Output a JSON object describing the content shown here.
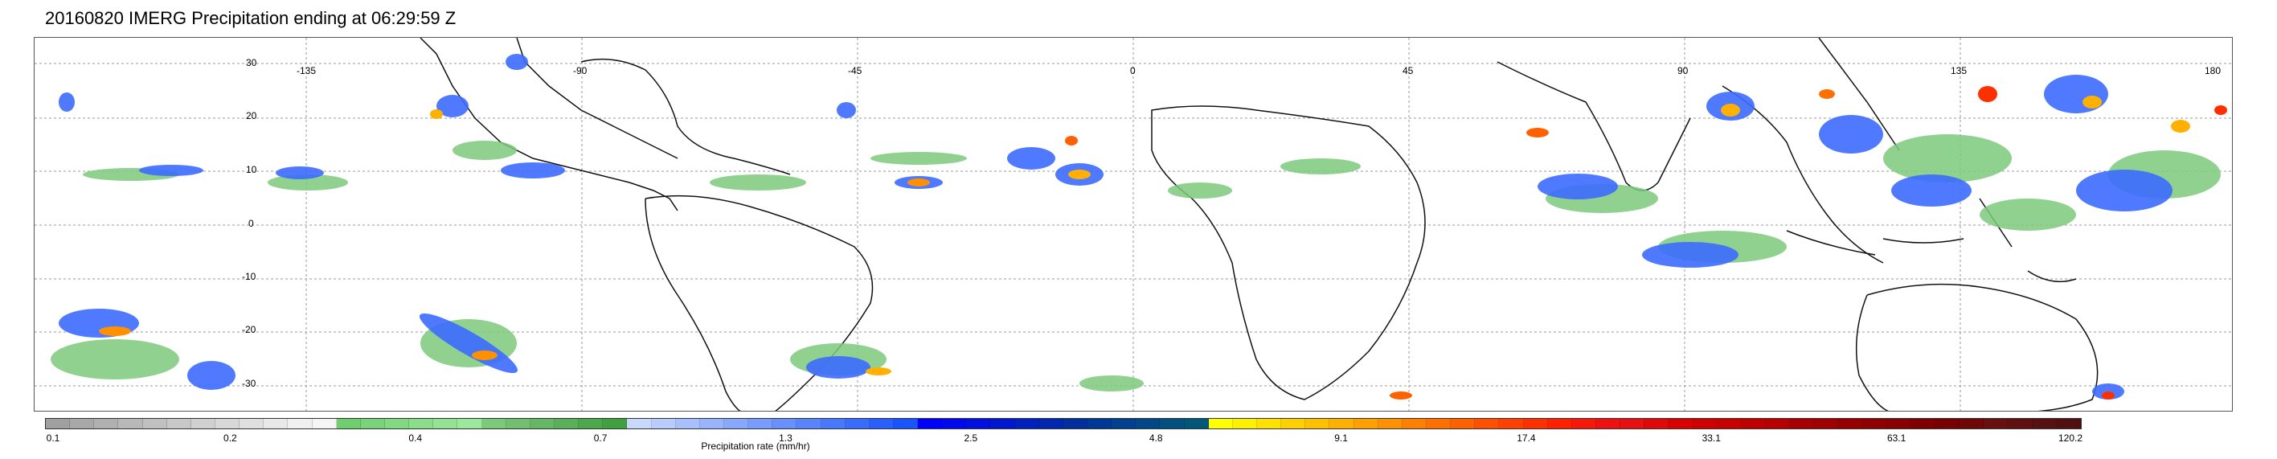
{
  "title": "20160820 IMERG Precipitation ending at 06:29:59 Z",
  "map": {
    "lat_labels": [
      "30",
      "20",
      "10",
      "0",
      "-10",
      "-20",
      "-30"
    ],
    "lon_labels": [
      "-135",
      "-90",
      "-45",
      "0",
      "45",
      "90",
      "135",
      "180"
    ]
  },
  "colorbar": {
    "title": "Precipitation rate (mm/hr)",
    "tick_labels": [
      "0.1",
      "0.2",
      "0.4",
      "0.7",
      "1.3",
      "2.5",
      "4.8",
      "9.1",
      "17.4",
      "33.1",
      "63.1",
      "120.2"
    ],
    "colors": [
      "#a0a0a0",
      "#a8a8a8",
      "#b0b0b0",
      "#b8b8b8",
      "#c0c0c0",
      "#c8c8c8",
      "#d0d0d0",
      "#d8d8d8",
      "#e0e0e0",
      "#e8e8e8",
      "#f0f0f0",
      "#f4f4f4",
      "#6fcf6f",
      "#78d478",
      "#81d981",
      "#8ade8a",
      "#93e393",
      "#9ce89c",
      "#7cc97c",
      "#70c070",
      "#64b864",
      "#58b058",
      "#4ca84c",
      "#40a040",
      "#c8d8ff",
      "#b8ccff",
      "#a8c0ff",
      "#98b4ff",
      "#88a8ff",
      "#789cff",
      "#6890ff",
      "#5884ff",
      "#4878ff",
      "#386cff",
      "#2860ff",
      "#1854ff",
      "#0000ff",
      "#0008f0",
      "#0010e0",
      "#0018d0",
      "#0020c0",
      "#0028b0",
      "#0030a0",
      "#003898",
      "#004090",
      "#004888",
      "#005080",
      "#005878",
      "#ffff00",
      "#fff000",
      "#ffe000",
      "#ffd000",
      "#ffc000",
      "#ffb000",
      "#ffa000",
      "#ff9000",
      "#ff8000",
      "#ff7000",
      "#ff6000",
      "#ff5000",
      "#ff4000",
      "#ff3000",
      "#ff2000",
      "#f81808",
      "#f01010",
      "#e81010",
      "#e00808",
      "#d80000",
      "#d00000",
      "#c80000",
      "#c00000",
      "#b80000",
      "#a80000",
      "#a00000",
      "#980000",
      "#900000",
      "#880000",
      "#800000",
      "#780000",
      "#700808",
      "#681010",
      "#601010",
      "#581010",
      "#501010"
    ]
  }
}
